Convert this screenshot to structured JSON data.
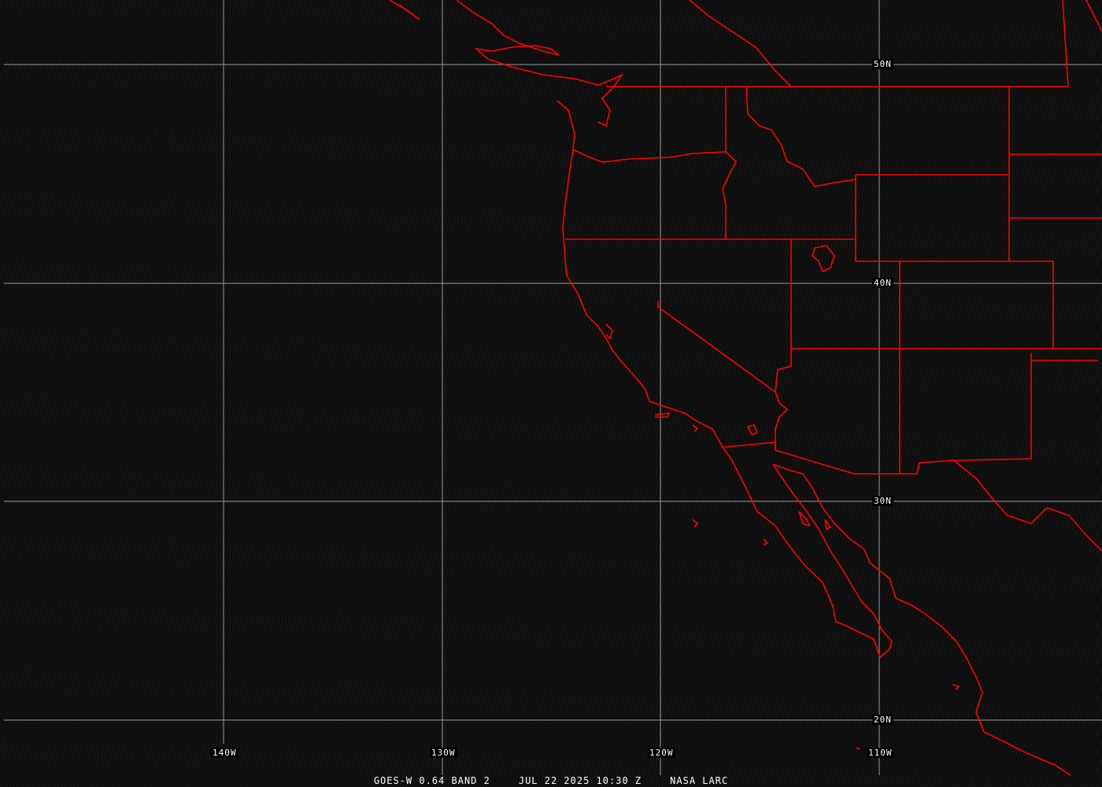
{
  "caption": {
    "product": "GOES-W 0.64 BAND 2",
    "datetime": "JUL 22 2025 10:30 Z",
    "source": "NASA LARC"
  },
  "grid": {
    "lat_labels": [
      "50N",
      "40N",
      "30N",
      "20N"
    ],
    "lon_labels": [
      "140W",
      "130W",
      "120W",
      "110W"
    ]
  },
  "colors": {
    "boundaries": "#ff0000",
    "grid": "#9a9a9a",
    "background": "#0b0b0b"
  }
}
